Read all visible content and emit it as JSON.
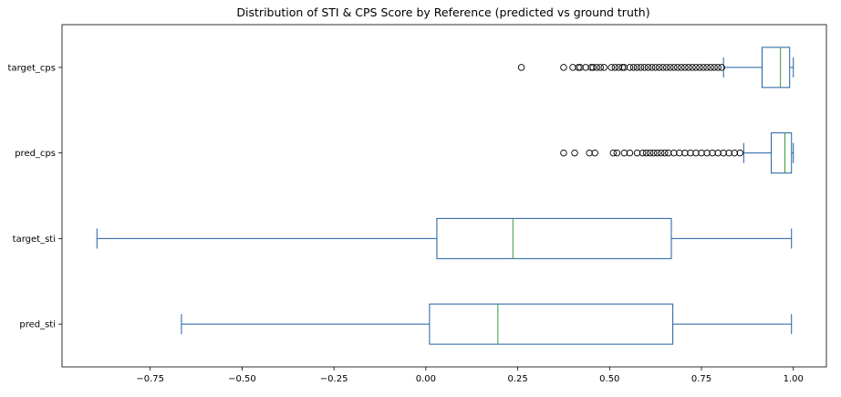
{
  "chart_data": {
    "type": "boxplot",
    "orientation": "horizontal",
    "title": "Distribution of STI & CPS Score by Reference (predicted vs ground truth)",
    "xlabel": "",
    "ylabel": "",
    "xlim": [
      -0.99,
      1.09
    ],
    "xticks": [
      -0.75,
      -0.5,
      -0.25,
      0.0,
      0.25,
      0.5,
      0.75,
      1.0
    ],
    "xtick_labels": [
      "−0.75",
      "−0.50",
      "−0.25",
      "0.00",
      "0.25",
      "0.50",
      "0.75",
      "1.00"
    ],
    "grid": false,
    "colors": {
      "box": "#1f5fa0",
      "median": "#3a9a3a",
      "flier": "#000000"
    },
    "series": [
      {
        "name": "pred_sti",
        "whisker_low": -0.665,
        "q1": 0.01,
        "median": 0.196,
        "q3": 0.672,
        "whisker_high": 0.995,
        "outliers": []
      },
      {
        "name": "target_sti",
        "whisker_low": -0.895,
        "q1": 0.03,
        "median": 0.237,
        "q3": 0.668,
        "whisker_high": 0.995,
        "outliers": []
      },
      {
        "name": "pred_cps",
        "whisker_low": 0.865,
        "q1": 0.94,
        "median": 0.977,
        "q3": 0.995,
        "whisker_high": 1.0,
        "outliers": [
          0.375,
          0.405,
          0.445,
          0.46,
          0.51,
          0.52,
          0.54,
          0.555,
          0.575,
          0.59,
          0.6,
          0.61,
          0.62,
          0.63,
          0.64,
          0.65,
          0.66,
          0.675,
          0.69,
          0.705,
          0.72,
          0.735,
          0.75,
          0.765,
          0.78,
          0.795,
          0.81,
          0.825,
          0.84,
          0.855
        ]
      },
      {
        "name": "target_cps",
        "whisker_low": 0.81,
        "q1": 0.915,
        "median": 0.965,
        "q3": 0.99,
        "whisker_high": 1.0,
        "outliers": [
          0.26,
          0.375,
          0.4,
          0.415,
          0.42,
          0.435,
          0.45,
          0.455,
          0.465,
          0.475,
          0.485,
          0.505,
          0.515,
          0.525,
          0.535,
          0.54,
          0.555,
          0.565,
          0.575,
          0.585,
          0.595,
          0.605,
          0.615,
          0.625,
          0.635,
          0.645,
          0.655,
          0.665,
          0.675,
          0.685,
          0.695,
          0.705,
          0.715,
          0.725,
          0.735,
          0.745,
          0.755,
          0.765,
          0.775,
          0.785,
          0.795,
          0.805
        ]
      }
    ]
  }
}
